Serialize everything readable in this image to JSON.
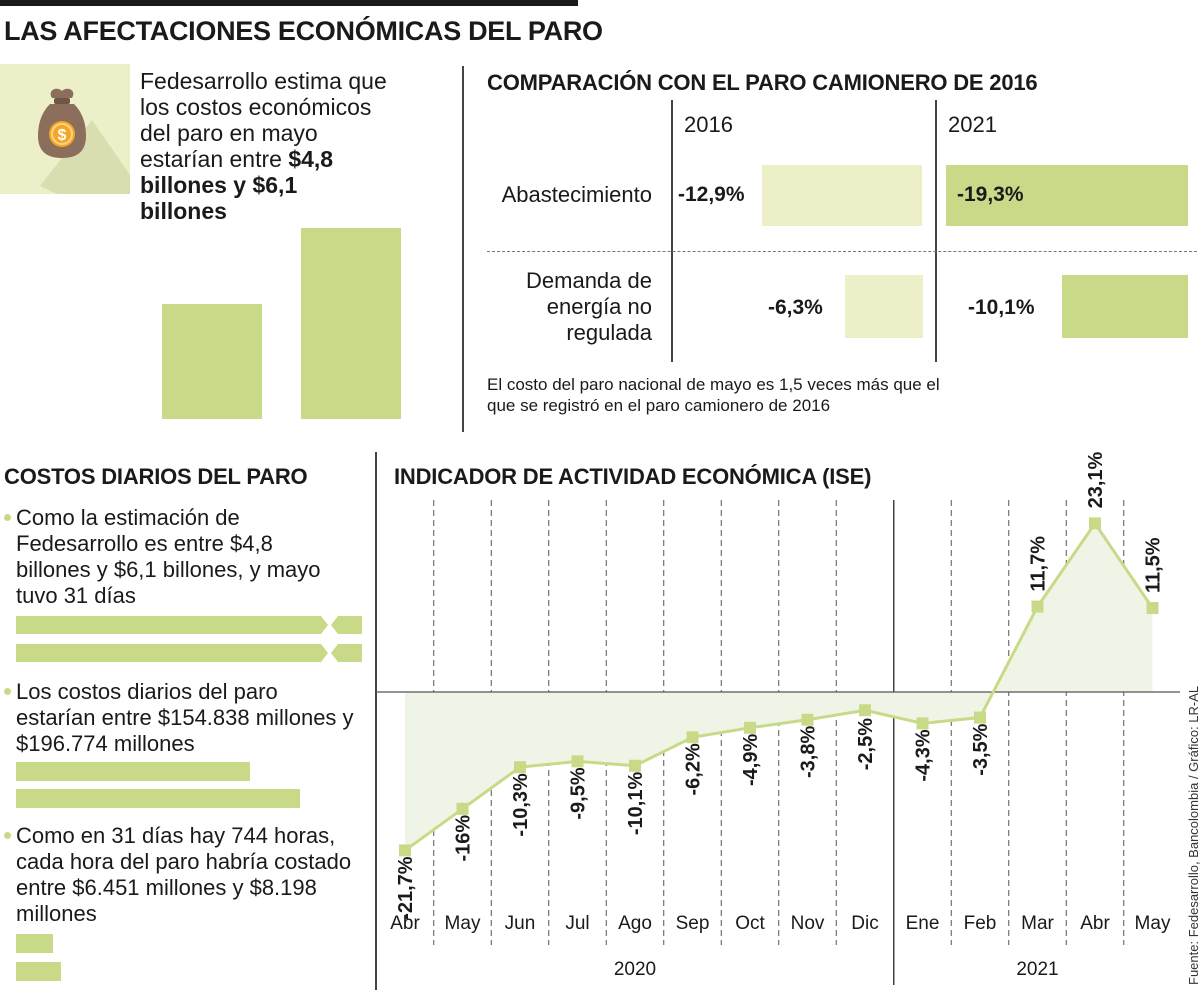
{
  "title": "LAS AFECTACIONES ECONÓMICAS DEL PARO",
  "fedesarrollo": {
    "text_plain": "Fedesarrollo estima que los costos económicos del paro en mayo estarían entre",
    "text_bold": "$4,8 billones y $6,1 billones",
    "icon": "money-bag-icon",
    "cost_range_billions": [
      4.8,
      6.1
    ]
  },
  "comparison": {
    "title": "COMPARACIÓN CON EL PARO CAMIONERO DE 2016",
    "years": [
      "2016",
      "2021"
    ],
    "rows": [
      {
        "label": "Abastecimiento",
        "v2016": "-12,9%",
        "v2021": "-19,3%"
      },
      {
        "label": "Demanda de energía no regulada",
        "v2016": "-6,3%",
        "v2021": "-10,1%"
      }
    ],
    "note": "El costo del paro nacional de mayo es 1,5 veces más que el que se registró en el paro camionero de 2016"
  },
  "daily": {
    "title": "COSTOS DIARIOS DEL PARO",
    "items": [
      {
        "text": "Como la estimación de Fedesarrollo es entre $4,8 billones y $6,1 billones, y mayo tuvo 31 días"
      },
      {
        "text": "Los costos diarios del paro estarían entre $154.838 millones y $196.774 millones"
      },
      {
        "text": "Como en 31 días hay 744 horas, cada hora del paro habría costado entre $6.451 millones y $8.198 millones"
      }
    ]
  },
  "chart_data": {
    "type": "line",
    "title": "INDICADOR DE ACTIVIDAD ECONÓMICA (ISE)",
    "categories": [
      "Abr",
      "May",
      "Jun",
      "Jul",
      "Ago",
      "Sep",
      "Oct",
      "Nov",
      "Dic",
      "Ene",
      "Feb",
      "Mar",
      "Abr",
      "May"
    ],
    "values": [
      -21.7,
      -16,
      -10.3,
      -9.5,
      -10.1,
      -6.2,
      -4.9,
      -3.8,
      -2.5,
      -4.3,
      -3.5,
      11.7,
      23.1,
      11.5
    ],
    "labels": [
      "-21,7%",
      "-16%",
      "-10,3%",
      "-9,5%",
      "-10,1%",
      "-6,2%",
      "-4,9%",
      "-3,8%",
      "-2,5%",
      "-4,3%",
      "-3,5%",
      "11,7%",
      "23,1%",
      "11,5%"
    ],
    "year_groups": [
      {
        "label": "2020",
        "count": 9
      },
      {
        "label": "2021",
        "count": 5
      }
    ],
    "ylim": [
      -25,
      25
    ],
    "series_color": "#c8da87",
    "fill_color": "#eff5e6"
  },
  "source": "Fuente: Fedesarrollo, Bancolombia / Gráfico: LR-AL",
  "colors": {
    "light": "#ecefc7",
    "dark": "#c8da87"
  }
}
